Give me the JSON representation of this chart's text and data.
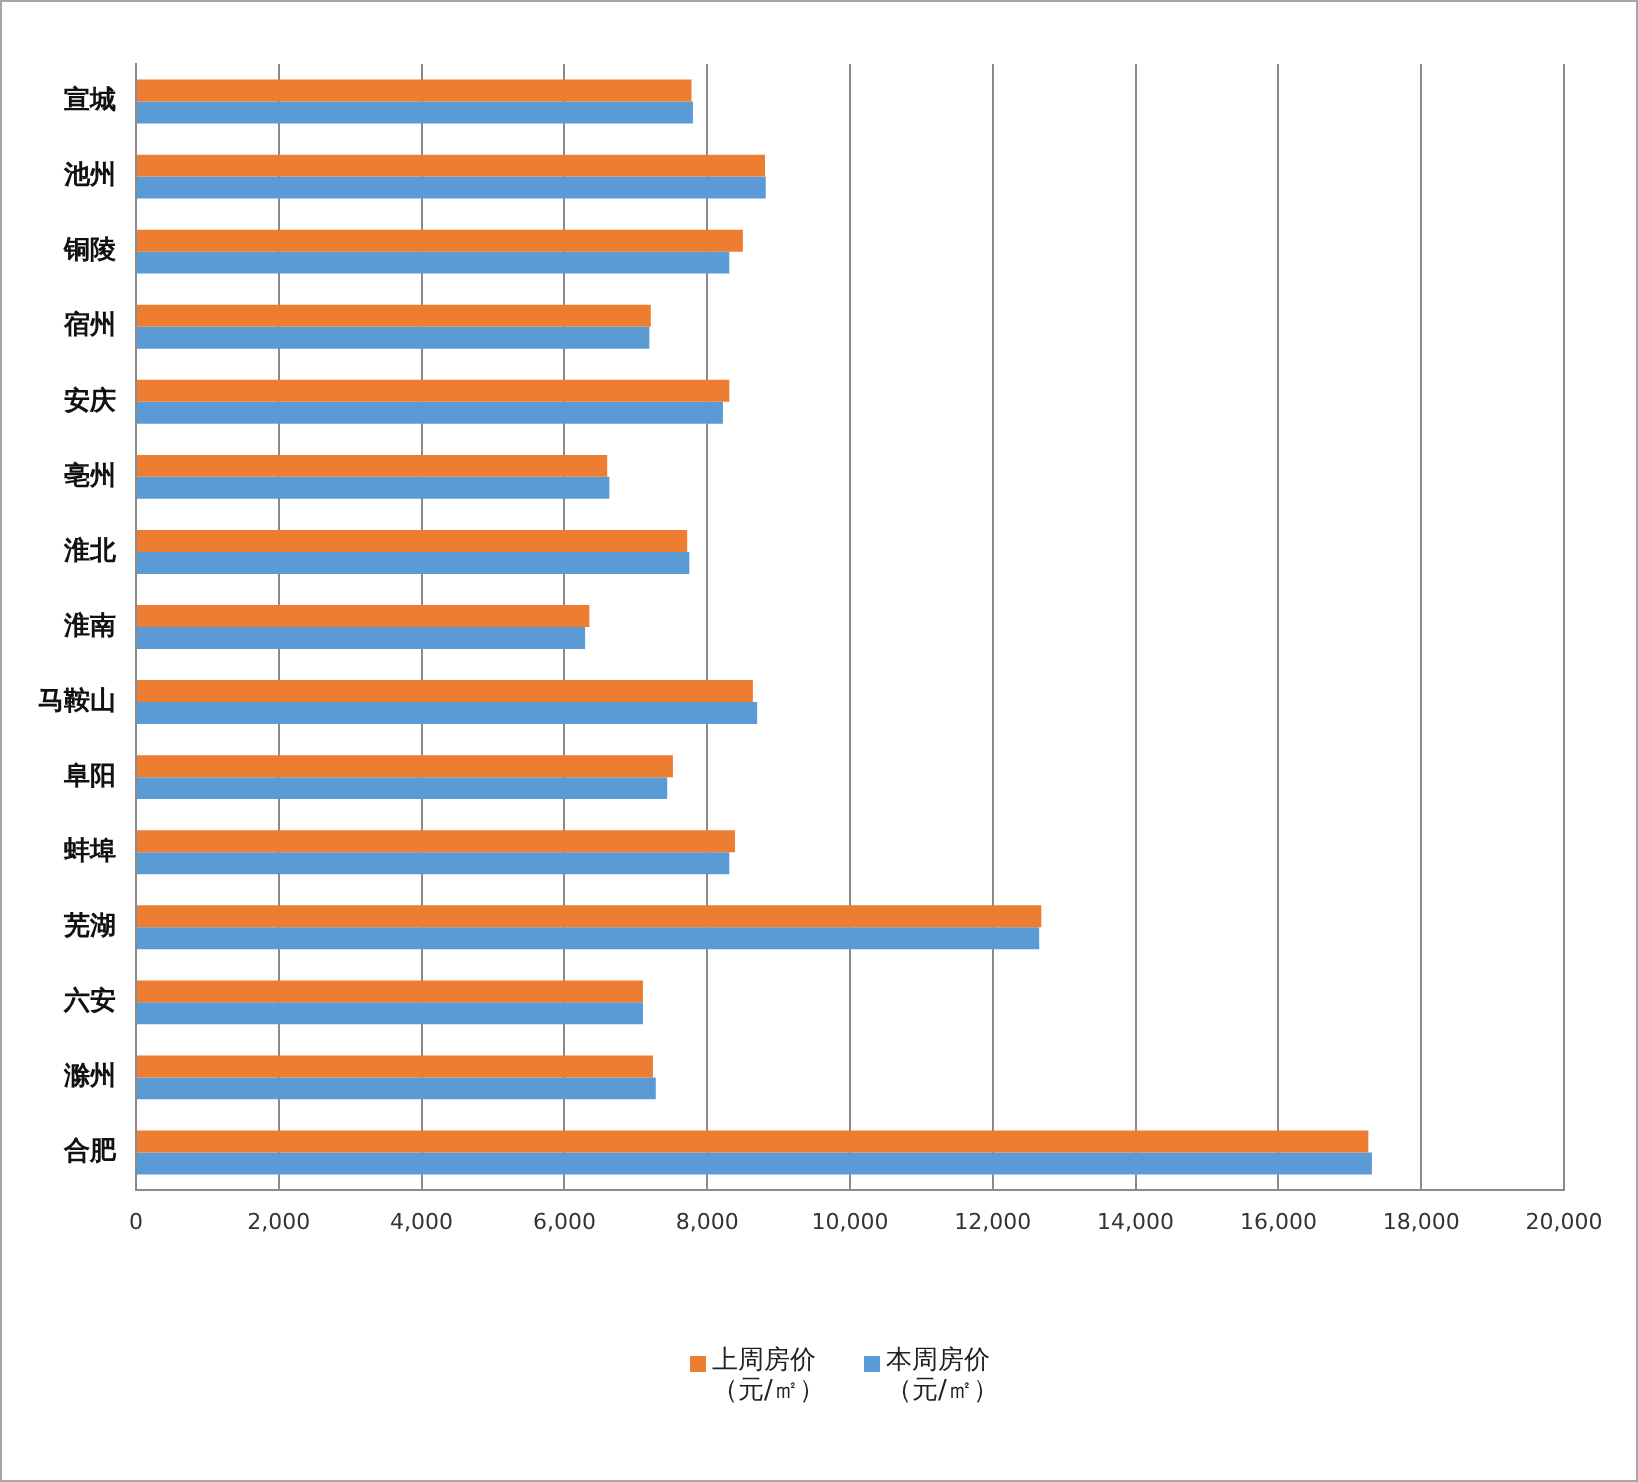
{
  "chart_data": {
    "type": "bar",
    "orientation": "horizontal",
    "categories": [
      "宣城",
      "池州",
      "铜陵",
      "宿州",
      "安庆",
      "亳州",
      "淮北",
      "淮南",
      "马鞍山",
      "阜阳",
      "蚌埠",
      "芜湖",
      "六安",
      "滁州",
      "合肥"
    ],
    "series": [
      {
        "name": "上周房价（元/㎡）",
        "color": "#ed7d31",
        "values": [
          7780,
          8810,
          8500,
          7210,
          8310,
          6600,
          7720,
          6350,
          8640,
          7520,
          8390,
          12680,
          7100,
          7240,
          17260
        ]
      },
      {
        "name": "本周房价（元/㎡）",
        "color": "#5b9bd5",
        "values": [
          7800,
          8820,
          8310,
          7190,
          8220,
          6630,
          7750,
          6290,
          8700,
          7440,
          8310,
          12650,
          7100,
          7280,
          17310
        ]
      }
    ],
    "xlim": [
      0,
      20000
    ],
    "xticks": [
      0,
      {
        "value": 2000,
        "label": "2,000"
      },
      {
        "value": 4000,
        "label": "4,000"
      },
      {
        "value": 6000,
        "label": "6,000"
      },
      {
        "value": 8000,
        "label": "8,000"
      },
      {
        "value": 10000,
        "label": "10,000"
      },
      {
        "value": 12000,
        "label": "12,000"
      },
      {
        "value": 14000,
        "label": "14,000"
      },
      {
        "value": 16000,
        "label": "16,000"
      },
      {
        "value": 18000,
        "label": "18,000"
      },
      {
        "value": 20000,
        "label": "20,000"
      }
    ],
    "grid": "x",
    "legend": "bottom"
  }
}
